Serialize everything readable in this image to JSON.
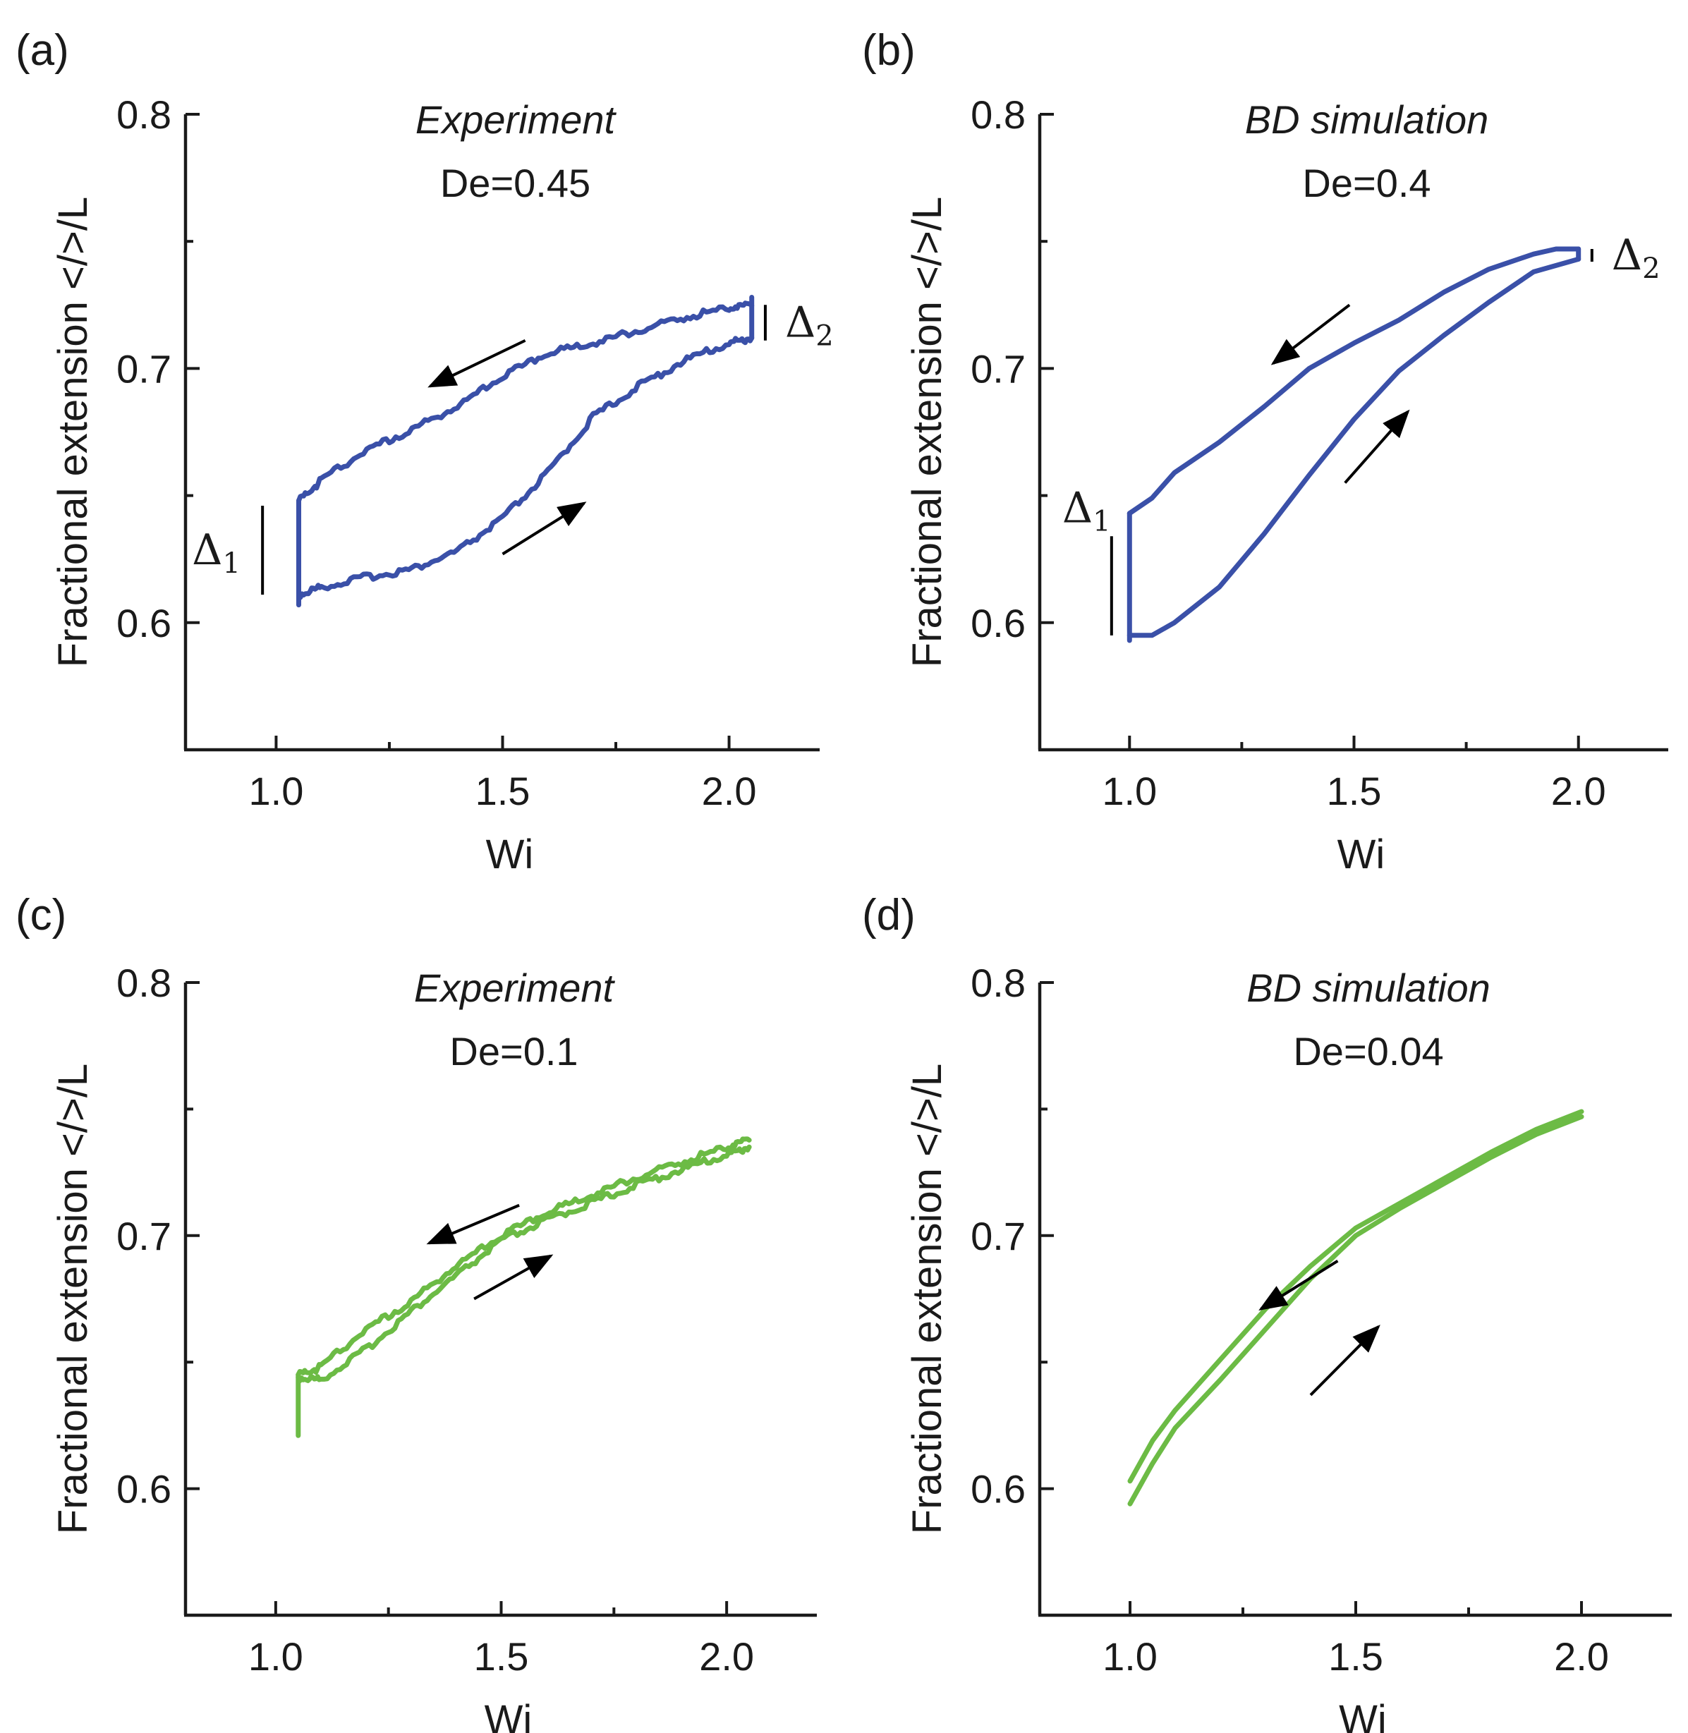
{
  "chart_data": [
    {
      "type": "line",
      "panel_label": "(a)",
      "title": "Experiment",
      "subtitle": "De=0.45",
      "xlabel": "Wi",
      "ylabel": "Fractional extension </>/L",
      "xlim": [
        0.8,
        2.2
      ],
      "ylim": [
        0.55,
        0.8
      ],
      "xticks": [
        1.0,
        1.5,
        2.0
      ],
      "xtick_labels": [
        "1.0",
        "1.5",
        "2.0"
      ],
      "yticks": [
        0.6,
        0.7,
        0.8
      ],
      "ytick_labels": [
        "0.6",
        "0.7",
        "0.8"
      ],
      "color": "#3a50a8",
      "series": [
        {
          "name": "increasing Wi",
          "x": [
            1.05,
            1.1,
            1.2,
            1.3,
            1.4,
            1.5,
            1.6,
            1.7,
            1.8,
            1.9,
            2.0,
            2.05
          ],
          "y": [
            0.611,
            0.614,
            0.618,
            0.621,
            0.628,
            0.641,
            0.659,
            0.681,
            0.693,
            0.703,
            0.71,
            0.712
          ]
        },
        {
          "name": "decreasing Wi",
          "x": [
            2.05,
            2.0,
            1.9,
            1.8,
            1.7,
            1.6,
            1.5,
            1.4,
            1.3,
            1.2,
            1.1,
            1.05
          ],
          "y": [
            0.725,
            0.724,
            0.72,
            0.715,
            0.71,
            0.706,
            0.697,
            0.685,
            0.676,
            0.668,
            0.656,
            0.648
          ]
        },
        {
          "name": "jump at Wi min",
          "x": [
            1.05,
            1.05
          ],
          "y": [
            0.648,
            0.607
          ]
        },
        {
          "name": "jump at Wi max",
          "x": [
            2.05,
            2.05
          ],
          "y": [
            0.712,
            0.728
          ]
        }
      ],
      "annotations": {
        "delta1": {
          "symbol": "Δ",
          "subscript": "1",
          "x": 0.97,
          "y_range": [
            0.611,
            0.646
          ]
        },
        "delta2": {
          "symbol": "Δ",
          "subscript": "2",
          "x": 2.08,
          "y_range": [
            0.711,
            0.725
          ]
        },
        "arrows": [
          {
            "direction": "decreasing",
            "from": [
              1.55,
              0.711
            ],
            "to": [
              1.34,
              0.693
            ]
          },
          {
            "direction": "increasing",
            "from": [
              1.5,
              0.627
            ],
            "to": [
              1.68,
              0.647
            ]
          }
        ]
      }
    },
    {
      "type": "line",
      "panel_label": "(b)",
      "title": "BD simulation",
      "subtitle": "De=0.4",
      "xlabel": "Wi",
      "ylabel": "Fractional extension </>/L",
      "xlim": [
        0.8,
        2.2
      ],
      "ylim": [
        0.55,
        0.8
      ],
      "xticks": [
        1.0,
        1.5,
        2.0
      ],
      "xtick_labels": [
        "1.0",
        "1.5",
        "2.0"
      ],
      "yticks": [
        0.6,
        0.7,
        0.8
      ],
      "ytick_labels": [
        "0.6",
        "0.7",
        "0.8"
      ],
      "color": "#3a50a8",
      "series": [
        {
          "name": "increasing Wi",
          "x": [
            1.0,
            1.05,
            1.1,
            1.2,
            1.3,
            1.4,
            1.5,
            1.6,
            1.7,
            1.8,
            1.9,
            2.0
          ],
          "y": [
            0.595,
            0.595,
            0.6,
            0.614,
            0.635,
            0.658,
            0.68,
            0.699,
            0.713,
            0.726,
            0.738,
            0.743
          ]
        },
        {
          "name": "decreasing Wi",
          "x": [
            2.0,
            1.95,
            1.9,
            1.8,
            1.7,
            1.6,
            1.5,
            1.4,
            1.3,
            1.2,
            1.1,
            1.05,
            1.0
          ],
          "y": [
            0.747,
            0.747,
            0.745,
            0.739,
            0.73,
            0.719,
            0.71,
            0.7,
            0.685,
            0.671,
            0.659,
            0.649,
            0.643
          ]
        },
        {
          "name": "jump at Wi min",
          "x": [
            1.0,
            1.0
          ],
          "y": [
            0.643,
            0.593
          ]
        },
        {
          "name": "jump at Wi max",
          "x": [
            2.0,
            2.0
          ],
          "y": [
            0.743,
            0.747
          ]
        }
      ],
      "annotations": {
        "delta1": {
          "symbol": "Δ",
          "subscript": "1",
          "x": 0.96,
          "y_range": [
            0.595,
            0.634
          ]
        },
        "delta2": {
          "symbol": "Δ",
          "subscript": "2",
          "x": 2.03,
          "y_range": [
            0.742,
            0.747
          ]
        },
        "arrows": [
          {
            "direction": "decreasing",
            "from": [
              1.49,
              0.725
            ],
            "to": [
              1.32,
              0.702
            ]
          },
          {
            "direction": "increasing",
            "from": [
              1.48,
              0.655
            ],
            "to": [
              1.62,
              0.683
            ]
          }
        ]
      }
    },
    {
      "type": "line",
      "panel_label": "(c)",
      "title": "Experiment",
      "subtitle": "De=0.1",
      "xlabel": "Wi",
      "ylabel": "Fractional extension </>/L",
      "xlim": [
        0.8,
        2.2
      ],
      "ylim": [
        0.55,
        0.8
      ],
      "xticks": [
        1.0,
        1.5,
        2.0
      ],
      "xtick_labels": [
        "1.0",
        "1.5",
        "2.0"
      ],
      "yticks": [
        0.6,
        0.7,
        0.8
      ],
      "ytick_labels": [
        "0.6",
        "0.7",
        "0.8"
      ],
      "color": "#6cbb45",
      "series": [
        {
          "name": "increasing Wi",
          "x": [
            1.05,
            1.1,
            1.2,
            1.3,
            1.4,
            1.5,
            1.6,
            1.7,
            1.8,
            1.9,
            2.0,
            2.05
          ],
          "y": [
            0.644,
            0.643,
            0.655,
            0.67,
            0.684,
            0.698,
            0.706,
            0.713,
            0.72,
            0.726,
            0.732,
            0.735
          ]
        },
        {
          "name": "decreasing Wi",
          "x": [
            2.05,
            2.0,
            1.9,
            1.8,
            1.7,
            1.6,
            1.5,
            1.4,
            1.3,
            1.2,
            1.1,
            1.05
          ],
          "y": [
            0.738,
            0.735,
            0.729,
            0.723,
            0.716,
            0.709,
            0.7,
            0.688,
            0.674,
            0.663,
            0.648,
            0.645
          ]
        },
        {
          "name": "jump at Wi min",
          "x": [
            1.05,
            1.05
          ],
          "y": [
            0.645,
            0.621
          ]
        }
      ],
      "annotations": {
        "arrows": [
          {
            "direction": "decreasing",
            "from": [
              1.54,
              0.712
            ],
            "to": [
              1.34,
              0.697
            ]
          },
          {
            "direction": "increasing",
            "from": [
              1.44,
              0.675
            ],
            "to": [
              1.61,
              0.692
            ]
          }
        ]
      }
    },
    {
      "type": "line",
      "panel_label": "(d)",
      "title": "BD simulation",
      "subtitle": "De=0.04",
      "xlabel": "Wi",
      "ylabel": "Fractional extension </>/L",
      "xlim": [
        0.8,
        2.2
      ],
      "ylim": [
        0.55,
        0.8
      ],
      "xticks": [
        1.0,
        1.5,
        2.0
      ],
      "xtick_labels": [
        "1.0",
        "1.5",
        "2.0"
      ],
      "yticks": [
        0.6,
        0.7,
        0.8
      ],
      "ytick_labels": [
        "0.6",
        "0.7",
        "0.8"
      ],
      "color": "#6cbb45",
      "series": [
        {
          "name": "increasing Wi",
          "x": [
            1.0,
            1.05,
            1.1,
            1.2,
            1.3,
            1.4,
            1.5,
            1.6,
            1.7,
            1.8,
            1.9,
            2.0
          ],
          "y": [
            0.594,
            0.61,
            0.624,
            0.643,
            0.663,
            0.683,
            0.7,
            0.711,
            0.721,
            0.731,
            0.74,
            0.747
          ]
        },
        {
          "name": "decreasing Wi",
          "x": [
            2.0,
            1.9,
            1.8,
            1.7,
            1.6,
            1.5,
            1.4,
            1.3,
            1.2,
            1.1,
            1.05,
            1.0
          ],
          "y": [
            0.749,
            0.742,
            0.733,
            0.723,
            0.713,
            0.703,
            0.688,
            0.671,
            0.651,
            0.631,
            0.619,
            0.603
          ]
        }
      ],
      "annotations": {
        "arrows": [
          {
            "direction": "decreasing",
            "from": [
              1.46,
              0.69
            ],
            "to": [
              1.29,
              0.671
            ]
          },
          {
            "direction": "increasing",
            "from": [
              1.4,
              0.637
            ],
            "to": [
              1.55,
              0.664
            ]
          }
        ]
      }
    }
  ]
}
